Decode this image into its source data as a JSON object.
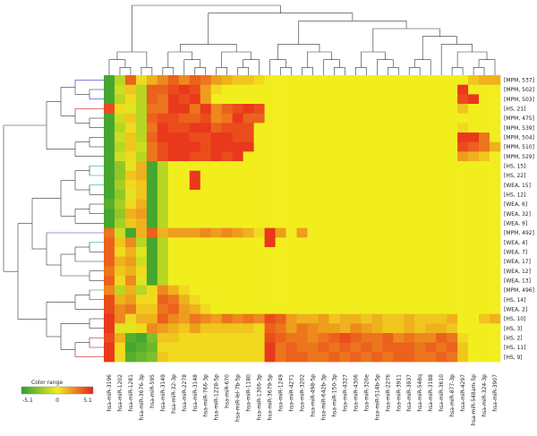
{
  "chart_data": {
    "type": "heatmap",
    "title": "",
    "color_scale": {
      "label": "Color range",
      "min": -5.1,
      "mid": 0,
      "max": 5.1,
      "tick_labels": [
        "-5.1",
        "0",
        "5.1"
      ],
      "colors": [
        "#2e9e32",
        "#f2ee1e",
        "#e8201c"
      ]
    },
    "columns": [
      "hsa-miR-3196",
      "hsa-miR-1202",
      "hsa-miR-1281",
      "hsa-miR-3676-3p",
      "hsa-miR-595",
      "hsa-miR-3149",
      "hsa-miR-32-3p",
      "hsa-miR-2278",
      "hsa-miR-3148",
      "hsa-miR-766-3p",
      "hsa-miR-1228-5p",
      "hsa-miR-670",
      "hsa-miR-lel-7b-5p",
      "hsa-miR-1180",
      "hsa-miR-1306-3p",
      "hsa-miR-3679-5p",
      "hsa-miR-1249",
      "hsa-miR-4271",
      "hsa-miR-3202",
      "hsa-miR-498-5p",
      "hsa-miR-642b-3p",
      "hsa-miR-150-3p",
      "hsa-miR-4327",
      "hsa-miR-4306",
      "hsa-miR-320e",
      "hsa-miR-514b-5p",
      "hsa-miR-2276",
      "hsa-miR-3911",
      "hsa-miR-3937",
      "hsa-miR-548q",
      "hsa-miR-3188",
      "hsa-miR-3610",
      "hsa-miR-877-3p",
      "hsa-miR-4297",
      "hsa-miR-548am-5p",
      "hsa-miR-324-3p",
      "hsa-miR-3907"
    ],
    "rows": [
      "[MPM, 537]",
      "[MPM, 502]",
      "[MPM, 503]",
      "[HS, 21]",
      "[MPM, 475]",
      "[MPM, 539]",
      "[MPM, 504]",
      "[MPM, 510]",
      "[MPM, 529]",
      "[HS, 15]",
      "[HS, 22]",
      "[WEA, 15]",
      "[HS, 12]",
      "[WEA, 6]",
      "[WEA, 32]",
      "[WEA, 9]",
      "[MPM, 492]",
      "[WEA, 4]",
      "[WEA, 7]",
      "[WEA, 17]",
      "[WEA, 12]",
      "[WEA, 13]",
      "[MPM, 496]",
      "[HS, 14]",
      "[WEA, 2]",
      "[HS, 10]",
      "[HS, 3]",
      "[HS, 2]",
      "[HS, 11]",
      "[HS, 9]"
    ],
    "values": [
      [
        -4.5,
        -1.5,
        3.5,
        0.5,
        1.5,
        2.5,
        3.5,
        2.5,
        3.5,
        3.0,
        2.0,
        1.5,
        1.0,
        1.0,
        0.5,
        0,
        0,
        0,
        0,
        0,
        0,
        0,
        0,
        0,
        0,
        0,
        0,
        0,
        0,
        0,
        0,
        0,
        0,
        0,
        1.0,
        1.5,
        1.5
      ],
      [
        -4.5,
        -1.0,
        1.0,
        -1.5,
        3.5,
        3.5,
        4.0,
        4.5,
        4.0,
        2.0,
        0.5,
        0,
        0,
        0,
        0,
        0,
        0,
        0,
        0,
        0,
        0,
        0,
        0,
        0,
        0,
        0,
        0,
        0,
        0,
        0,
        0,
        0,
        0,
        4.5,
        0,
        0,
        0
      ],
      [
        -4.5,
        -1.5,
        0.5,
        -1.5,
        3.5,
        3.0,
        4.5,
        4.0,
        4.5,
        2.0,
        0,
        0,
        0,
        0,
        0,
        0,
        0,
        0,
        0,
        0,
        0,
        0,
        0,
        0,
        0,
        0,
        0,
        0,
        0,
        0,
        0,
        0,
        0,
        4.0,
        4.5,
        0,
        0
      ],
      [
        4.0,
        0.5,
        -0.5,
        -1.5,
        3.0,
        3.0,
        4.5,
        4.5,
        3.0,
        4.5,
        2.5,
        3.5,
        4.0,
        4.5,
        4.0,
        0,
        0,
        0,
        0,
        0,
        0,
        0,
        0,
        0,
        0,
        0,
        0,
        0,
        0,
        0,
        0,
        0,
        0,
        1.0,
        0,
        0,
        0
      ],
      [
        -4.5,
        -1.0,
        1.0,
        -1.5,
        3.5,
        4.0,
        4.0,
        3.5,
        3.5,
        4.0,
        2.5,
        3.0,
        4.5,
        3.5,
        3.5,
        0,
        0,
        0,
        0,
        0,
        0,
        0,
        0,
        0,
        0,
        0,
        0,
        0,
        0,
        0,
        0,
        0,
        0,
        0,
        0,
        0,
        0
      ],
      [
        -4.5,
        -1.5,
        0.5,
        -1.5,
        3.0,
        4.5,
        4.0,
        4.0,
        4.5,
        4.5,
        3.5,
        4.0,
        4.0,
        4.0,
        0,
        0,
        0,
        0,
        0,
        0,
        0,
        0,
        0,
        0,
        0,
        0,
        0,
        0,
        0,
        0,
        0,
        0,
        0,
        0.5,
        0,
        0,
        0
      ],
      [
        -4.5,
        -1.0,
        1.0,
        -1.5,
        3.5,
        4.5,
        4.5,
        4.5,
        4.0,
        4.0,
        4.5,
        4.5,
        4.0,
        4.0,
        0,
        0,
        0,
        0,
        0,
        0,
        0,
        0,
        0,
        0,
        0,
        0,
        0,
        0,
        0,
        0,
        0,
        0,
        0,
        4.5,
        4.5,
        3.0,
        0
      ],
      [
        -4.5,
        -1.5,
        1.0,
        -1.0,
        3.0,
        4.0,
        4.5,
        4.5,
        4.5,
        4.0,
        4.5,
        4.5,
        4.5,
        4.5,
        0,
        0,
        0,
        0,
        0,
        0,
        0,
        0,
        0,
        0,
        0,
        0,
        0,
        0,
        0,
        0,
        0,
        0,
        0,
        4.0,
        3.5,
        3.0,
        1.5
      ],
      [
        -4.5,
        -1.0,
        0.5,
        -1.5,
        3.0,
        4.0,
        4.5,
        4.5,
        4.0,
        4.0,
        4.5,
        4.0,
        4.5,
        0,
        0,
        0,
        0,
        0,
        0,
        0,
        0,
        0,
        0,
        0,
        0,
        0,
        0,
        0,
        0,
        0,
        0,
        0,
        0,
        2.0,
        1.5,
        1.0,
        0
      ],
      [
        -4.5,
        -2.5,
        -0.5,
        1.5,
        -4.5,
        -1.5,
        0,
        0,
        0,
        0,
        0,
        0,
        0,
        0,
        0,
        0,
        0,
        0,
        0,
        0,
        0,
        0,
        0,
        0,
        0,
        0,
        0,
        0,
        0,
        0,
        0,
        0,
        0,
        0,
        0,
        0,
        0
      ],
      [
        -4.5,
        -2.5,
        1.0,
        1.5,
        -4.5,
        -1.5,
        0,
        0,
        4.5,
        0,
        0,
        0,
        0,
        0,
        0,
        0,
        0,
        0,
        0,
        0,
        0,
        0,
        0,
        0,
        0,
        0,
        0,
        0,
        0,
        0,
        0,
        0,
        0,
        0,
        0,
        0,
        0
      ],
      [
        -4.5,
        -2.0,
        0.5,
        1.0,
        -4.5,
        -1.5,
        0,
        0,
        4.5,
        0,
        0,
        0,
        0,
        0,
        0,
        0,
        0,
        0,
        0,
        0,
        0,
        0,
        0,
        0,
        0,
        0,
        0,
        0,
        0,
        0,
        0,
        0,
        0,
        0,
        0,
        0,
        0
      ],
      [
        -4.5,
        -2.5,
        -0.5,
        1.0,
        -4.5,
        -1.5,
        0,
        0,
        0,
        0,
        0,
        0,
        0,
        0,
        0,
        0,
        0,
        0,
        0,
        0,
        0,
        0,
        0,
        0,
        0,
        0,
        0,
        0,
        0,
        0,
        0,
        0,
        0,
        0,
        0,
        0,
        0
      ],
      [
        -4.0,
        -2.0,
        0.5,
        1.5,
        -4.5,
        -1.5,
        0,
        0,
        0,
        0,
        0,
        0,
        0,
        0,
        0,
        0,
        0,
        0,
        0,
        0,
        0,
        0,
        0,
        0,
        0,
        0,
        0,
        0,
        0,
        0,
        0,
        0,
        0,
        0,
        0,
        0,
        0
      ],
      [
        -4.5,
        -2.5,
        1.5,
        2.0,
        -4.5,
        -1.5,
        0,
        0,
        0,
        0,
        0,
        0,
        0,
        0,
        0,
        0,
        0,
        0,
        0,
        0,
        0,
        0,
        0,
        0,
        0,
        0,
        0,
        0,
        0,
        0,
        0,
        0,
        0,
        0,
        0,
        0,
        0
      ],
      [
        -4.5,
        -2.0,
        1.0,
        1.5,
        -4.5,
        -1.5,
        0,
        0,
        0,
        0,
        0,
        0,
        0,
        0,
        0,
        0,
        0,
        0,
        0,
        0,
        0,
        0,
        0,
        0,
        0,
        0,
        0,
        0,
        0,
        0,
        0,
        0,
        0,
        0,
        0,
        0,
        0
      ],
      [
        3.0,
        -1.0,
        -4.5,
        1.5,
        3.5,
        1.5,
        2.0,
        2.0,
        2.0,
        2.5,
        2.0,
        2.5,
        2.0,
        1.5,
        0.5,
        4.5,
        2.0,
        0,
        2.0,
        0,
        0,
        0,
        0,
        0,
        0,
        0,
        0,
        0,
        0,
        0,
        0,
        0,
        0,
        0,
        0,
        0,
        0
      ],
      [
        3.5,
        1.0,
        2.5,
        -1.5,
        -4.5,
        -1.5,
        0,
        0,
        0,
        0,
        0,
        0,
        0,
        0,
        0,
        4.5,
        0,
        0,
        0,
        0,
        0,
        0,
        0,
        0,
        0,
        0,
        0,
        0,
        0,
        0,
        0,
        0,
        0,
        0,
        0,
        0,
        0
      ],
      [
        3.5,
        0.5,
        1.5,
        -0.5,
        -4.5,
        -1.5,
        0,
        0,
        0,
        0,
        0,
        0,
        0,
        0,
        0,
        0,
        0,
        0,
        0,
        0,
        0,
        0,
        0,
        0,
        0,
        0,
        0,
        0,
        0,
        0,
        0,
        0,
        0,
        0,
        0,
        0,
        0
      ],
      [
        3.5,
        1.5,
        2.0,
        -1.0,
        -4.5,
        -1.5,
        0,
        0,
        0,
        0,
        0,
        0,
        0,
        0,
        0,
        0,
        0,
        0,
        0,
        0,
        0,
        0,
        0,
        0,
        0,
        0,
        0,
        0,
        0,
        0,
        0,
        0,
        0,
        0,
        0,
        0,
        0
      ],
      [
        3.0,
        1.0,
        1.5,
        0.5,
        -4.5,
        -1.5,
        0,
        0,
        0,
        0,
        0,
        0,
        0,
        0,
        0,
        0,
        0,
        0,
        0,
        0,
        0,
        0,
        0,
        0,
        0,
        0,
        0,
        0,
        0,
        0,
        0,
        0,
        0,
        0,
        0,
        0,
        0
      ],
      [
        3.5,
        0.5,
        2.5,
        -0.5,
        -4.5,
        -1.5,
        0,
        0,
        0,
        0,
        0,
        0,
        0,
        0,
        0,
        0,
        0,
        0,
        0,
        0,
        0,
        0,
        0,
        0,
        0,
        0,
        0,
        0,
        0,
        0,
        0,
        0,
        0,
        0,
        0,
        0,
        0
      ],
      [
        2.5,
        -1.5,
        1.5,
        -1.5,
        0.5,
        2.5,
        1.5,
        0.5,
        0,
        0,
        0,
        0,
        0,
        0,
        0,
        0,
        0,
        0,
        0,
        0,
        0,
        0,
        0,
        0,
        0,
        0,
        0,
        0,
        0,
        0,
        0,
        0,
        0,
        0,
        0,
        0,
        0
      ],
      [
        4.0,
        1.5,
        2.0,
        0.5,
        0.5,
        3.5,
        3.0,
        1.5,
        0.5,
        0,
        0,
        0,
        0,
        0,
        0,
        0,
        0,
        0,
        0,
        0,
        0,
        0,
        0,
        0,
        0,
        0,
        0,
        0,
        0,
        0,
        0,
        0,
        0,
        0,
        0,
        0,
        0
      ],
      [
        4.0,
        2.5,
        3.0,
        1.0,
        1.0,
        3.0,
        3.5,
        2.0,
        1.5,
        0.5,
        0,
        0,
        0,
        0,
        0,
        0,
        0,
        0,
        0,
        0,
        0,
        0,
        0,
        0,
        0,
        0,
        0,
        0,
        0,
        0,
        0,
        0,
        0,
        0,
        0,
        0,
        0
      ],
      [
        4.5,
        2.5,
        0.5,
        1.5,
        1.5,
        3.5,
        2.5,
        2.0,
        3.0,
        2.5,
        2.0,
        3.0,
        2.5,
        3.0,
        2.5,
        4.0,
        3.5,
        2.0,
        1.5,
        1.5,
        2.0,
        1.0,
        1.5,
        1.5,
        1.0,
        1.5,
        1.0,
        1.0,
        1.5,
        1.0,
        1.0,
        1.0,
        1.5,
        0,
        0,
        1.0,
        1.5
      ],
      [
        4.5,
        -0.5,
        -0.5,
        0.5,
        2.5,
        2.0,
        1.5,
        1.0,
        2.0,
        1.0,
        1.0,
        1.0,
        1.0,
        1.0,
        0.5,
        3.5,
        3.0,
        2.0,
        3.0,
        2.5,
        2.0,
        2.0,
        1.5,
        2.5,
        2.0,
        1.5,
        1.0,
        1.0,
        1.5,
        1.0,
        1.5,
        1.5,
        1.0,
        0,
        0,
        0,
        0
      ],
      [
        4.0,
        1.5,
        -4.0,
        -4.5,
        -3.0,
        1.0,
        1.0,
        0.5,
        0.5,
        0.5,
        0.5,
        0.5,
        0.5,
        0.5,
        0.5,
        4.0,
        3.5,
        3.0,
        3.0,
        2.5,
        3.0,
        3.5,
        4.0,
        3.5,
        3.0,
        3.0,
        3.5,
        2.5,
        3.0,
        2.5,
        2.5,
        3.5,
        3.0,
        0.5,
        0,
        0,
        0
      ],
      [
        4.5,
        0.5,
        -4.5,
        -4.0,
        -3.5,
        0.5,
        0.5,
        0.5,
        0.5,
        0.5,
        0.5,
        0.5,
        0.5,
        0.5,
        0.5,
        4.5,
        3.0,
        3.5,
        3.0,
        3.0,
        3.5,
        3.0,
        3.5,
        3.0,
        3.5,
        3.0,
        3.5,
        3.5,
        3.5,
        3.0,
        3.5,
        3.0,
        3.5,
        1.0,
        0,
        0,
        0
      ],
      [
        4.5,
        0.5,
        -4.0,
        -3.5,
        -3.0,
        1.0,
        0.5,
        0.5,
        0.5,
        0.5,
        0.5,
        0.5,
        0.5,
        0.5,
        0.5,
        4.5,
        3.0,
        3.5,
        3.5,
        3.0,
        3.0,
        3.5,
        3.0,
        3.5,
        3.0,
        3.5,
        3.0,
        3.5,
        3.5,
        3.0,
        3.0,
        3.5,
        3.0,
        1.0,
        0,
        0,
        0
      ]
    ]
  }
}
